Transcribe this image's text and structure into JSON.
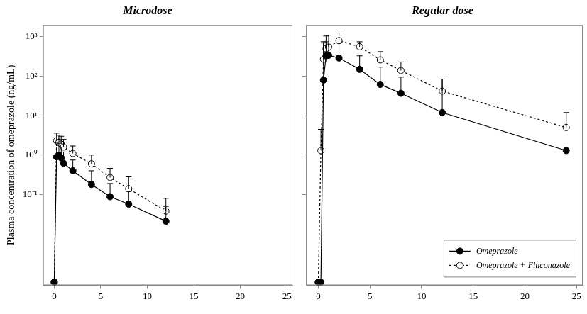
{
  "chart_data": [
    {
      "type": "line",
      "title": "Microdose",
      "y_label": "Plasma concentration of omeprazole (ng/mL)",
      "log": "y",
      "grid": false,
      "x": [
        0,
        0.25,
        0.5,
        0.75,
        1,
        2,
        4,
        6,
        8,
        12
      ],
      "xlim": [
        -1.2,
        25.6
      ],
      "xticks": [
        0,
        5,
        10,
        15,
        20,
        25
      ],
      "ylim": [
        0.0005,
        2000
      ],
      "yticks": [
        {
          "value": 0.1,
          "label": "10⁻¹"
        },
        {
          "value": 1,
          "label": "10⁰"
        },
        {
          "value": 10,
          "label": "10¹"
        },
        {
          "value": 100,
          "label": "10²"
        },
        {
          "value": 1000,
          "label": "10³"
        }
      ],
      "series": [
        {
          "name": "Omeprazole",
          "color": "#000000",
          "marker": "filled_circle",
          "line_style": "solid",
          "values": [
            0.0006,
            0.9,
            1.0,
            0.85,
            0.62,
            0.4,
            0.18,
            0.088,
            0.057,
            0.021
          ],
          "error_upper": [
            null,
            1.6,
            2.0,
            1.6,
            1.2,
            0.75,
            0.4,
            0.19,
            0.12,
            0.05
          ]
        },
        {
          "name": "Omeprazole + Fluconazole",
          "color": "#000000",
          "marker": "open_circle",
          "line_style": "dotted",
          "values": [
            0.0006,
            2.3,
            2.1,
            1.9,
            1.6,
            1.1,
            0.6,
            0.27,
            0.14,
            0.038
          ],
          "error_upper": [
            null,
            3.6,
            3.2,
            3.0,
            2.5,
            1.7,
            1.0,
            0.46,
            0.28,
            0.08
          ]
        }
      ]
    },
    {
      "type": "line",
      "title": "Regular dose",
      "tick_labels": "x",
      "log": "y",
      "grid": false,
      "legend": "lower right",
      "x": [
        0,
        0.25,
        0.5,
        0.75,
        1,
        2,
        4,
        6,
        8,
        12,
        24
      ],
      "xlim": [
        -1.2,
        25.6
      ],
      "xticks": [
        0,
        5,
        10,
        15,
        20,
        25
      ],
      "ylim": [
        0.0005,
        2000
      ],
      "yticks": [
        {
          "value": 0.1,
          "label": "10⁻¹"
        },
        {
          "value": 1,
          "label": "10⁰"
        },
        {
          "value": 10,
          "label": "10¹"
        },
        {
          "value": 100,
          "label": "10²"
        },
        {
          "value": 1000,
          "label": "10³"
        }
      ],
      "series": [
        {
          "name": "Omeprazole",
          "color": "#000000",
          "marker": "filled_circle",
          "line_style": "solid",
          "values": [
            0.0006,
            0.0006,
            80,
            330,
            340,
            290,
            150,
            62,
            37,
            12,
            1.3
          ],
          "error_upper": [
            null,
            null,
            700,
            750,
            700,
            700,
            330,
            170,
            95,
            85,
            null
          ]
        },
        {
          "name": "Omeprazole + Fluconazole",
          "color": "#000000",
          "marker": "open_circle",
          "line_style": "dotted",
          "values": [
            0.0006,
            1.3,
            270,
            500,
            550,
            800,
            560,
            260,
            140,
            42,
            5
          ],
          "error_upper": [
            null,
            4.5,
            750,
            1050,
            1100,
            1250,
            750,
            420,
            230,
            85,
            12
          ]
        }
      ]
    }
  ]
}
